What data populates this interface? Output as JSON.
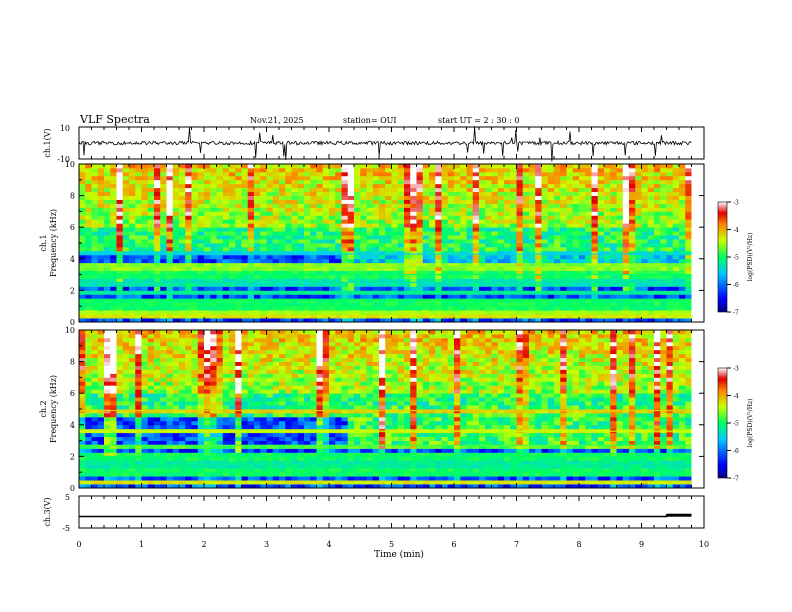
{
  "header": {
    "title": "VLF Spectra",
    "date": "Nov.21, 2025",
    "station": "station= OUI",
    "start": "start UT = 2 : 30 : 0"
  },
  "panels": {
    "ch1_wave": {
      "ylabel": "ch.1(V)",
      "ymax_label": "10",
      "ymin_label": "-10"
    },
    "ch1_spec": {
      "ylabel1": "ch.1",
      "ylabel2": "Frequency (kHz)"
    },
    "ch2_spec": {
      "ylabel1": "ch.2",
      "ylabel2": "Frequency (kHz)"
    },
    "ch3_wave": {
      "ylabel": "ch.3(V)",
      "ymax_label": "5",
      "ymin_label": "-5"
    }
  },
  "colorbar": {
    "label": "log(PSD)(V²/Hz)",
    "ticks": [
      "-3",
      "-4",
      "-5",
      "-6",
      "-7"
    ]
  },
  "chart_data": [
    {
      "type": "line",
      "title": "ch.1 waveform",
      "ylabel": "ch.1(V)",
      "ylim": [
        -10,
        10
      ],
      "xlim": [
        0,
        10
      ],
      "description": "broadband noise around 0 V with sharp spikes"
    },
    {
      "type": "heatmap",
      "title": "ch.1 spectrogram",
      "ylabel": "Frequency (kHz)",
      "xlim": [
        0,
        9.8
      ],
      "ylim": [
        0,
        10
      ],
      "yticks": [
        0,
        2,
        4,
        6,
        8,
        10
      ],
      "colorbar_range": [
        -7,
        -3
      ],
      "bands": [
        {
          "f": 0.4,
          "lvl": -4.3
        },
        {
          "f": 0.6,
          "lvl": -4.5
        },
        {
          "f": 1.0,
          "lvl": -5.0
        },
        {
          "f": 1.4,
          "lvl": -5.0
        },
        {
          "f": 1.8,
          "lvl": -5.2
        },
        {
          "f": 2.5,
          "lvl": -5.3
        },
        {
          "f": 3.0,
          "lvl": -5.0
        },
        {
          "f": 3.5,
          "lvl": -4.6
        },
        {
          "f": 4.3,
          "lvl": -5.5
        }
      ]
    },
    {
      "type": "heatmap",
      "title": "ch.2 spectrogram",
      "ylabel": "Frequency (kHz)",
      "xlim": [
        0,
        9.8
      ],
      "ylim": [
        0,
        10
      ],
      "yticks": [
        0,
        2,
        4,
        6,
        8,
        10
      ],
      "colorbar_range": [
        -7,
        -3
      ],
      "bands": [
        {
          "f": 0.4,
          "lvl": -4.3
        },
        {
          "f": 1.0,
          "lvl": -5.0
        },
        {
          "f": 1.5,
          "lvl": -5.2
        },
        {
          "f": 2.0,
          "lvl": -5.0
        },
        {
          "f": 2.7,
          "lvl": -4.8
        },
        {
          "f": 3.6,
          "lvl": -4.4
        },
        {
          "f": 4.9,
          "lvl": -4.2
        }
      ]
    },
    {
      "type": "line",
      "title": "ch.3 waveform",
      "ylabel": "ch.3(V)",
      "ylim": [
        -5,
        5
      ],
      "xlim": [
        0,
        10
      ],
      "points": [
        {
          "x": 0,
          "y": -1.4
        },
        {
          "x": 9.4,
          "y": -1.4
        },
        {
          "x": 9.4,
          "y": -1.0
        },
        {
          "x": 9.8,
          "y": -1.0
        }
      ]
    }
  ],
  "xaxis": {
    "label": "Time (min)",
    "ticks": [
      "0",
      "1",
      "2",
      "3",
      "4",
      "5",
      "6",
      "7",
      "8",
      "9",
      "10"
    ]
  },
  "spectro_yticks": [
    "0",
    "2",
    "4",
    "6",
    "8",
    "10"
  ]
}
